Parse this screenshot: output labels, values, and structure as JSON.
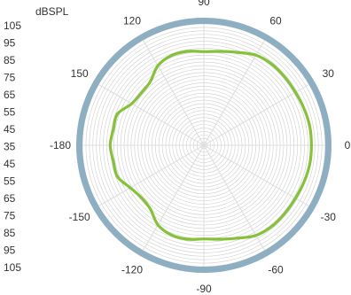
{
  "chart_data": {
    "type": "polar",
    "unit_label": "dBSPL",
    "radial_scale_labels": [
      "105",
      "95",
      "85",
      "75",
      "65",
      "55",
      "45",
      "35",
      "45",
      "55",
      "65",
      "75",
      "85",
      "95",
      "105"
    ],
    "angle_labels": [
      {
        "deg": 0,
        "text": "0"
      },
      {
        "deg": 30,
        "text": "30"
      },
      {
        "deg": 60,
        "text": "60"
      },
      {
        "deg": 90,
        "text": "90"
      },
      {
        "deg": 120,
        "text": "120"
      },
      {
        "deg": 150,
        "text": "150"
      },
      {
        "deg": 180,
        "text": "-180"
      },
      {
        "deg": -150,
        "text": "-150"
      },
      {
        "deg": -120,
        "text": "-120"
      },
      {
        "deg": -90,
        "text": "-90"
      },
      {
        "deg": -60,
        "text": "-60"
      },
      {
        "deg": -30,
        "text": "-30"
      }
    ],
    "r_range": [
      35,
      105
    ],
    "grid": true,
    "series": [
      {
        "color": "#86c13a",
        "points": [
          {
            "angle": 0,
            "value": 97
          },
          {
            "angle": 10,
            "value": 97
          },
          {
            "angle": 20,
            "value": 96.5
          },
          {
            "angle": 30,
            "value": 96
          },
          {
            "angle": 40,
            "value": 96
          },
          {
            "angle": 50,
            "value": 96
          },
          {
            "angle": 60,
            "value": 95
          },
          {
            "angle": 70,
            "value": 92
          },
          {
            "angle": 80,
            "value": 90
          },
          {
            "angle": 90,
            "value": 89
          },
          {
            "angle": 100,
            "value": 90
          },
          {
            "angle": 110,
            "value": 90
          },
          {
            "angle": 120,
            "value": 88
          },
          {
            "angle": 130,
            "value": 83
          },
          {
            "angle": 140,
            "value": 82
          },
          {
            "angle": 150,
            "value": 83
          },
          {
            "angle": 160,
            "value": 88
          },
          {
            "angle": 170,
            "value": 88
          },
          {
            "angle": 180,
            "value": 89
          },
          {
            "angle": -170,
            "value": 88
          },
          {
            "angle": -160,
            "value": 88
          },
          {
            "angle": -150,
            "value": 84
          },
          {
            "angle": -140,
            "value": 82
          },
          {
            "angle": -130,
            "value": 83
          },
          {
            "angle": -120,
            "value": 88
          },
          {
            "angle": -110,
            "value": 90
          },
          {
            "angle": -100,
            "value": 90
          },
          {
            "angle": -90,
            "value": 89
          },
          {
            "angle": -80,
            "value": 90
          },
          {
            "angle": -70,
            "value": 92
          },
          {
            "angle": -60,
            "value": 95
          },
          {
            "angle": -50,
            "value": 96
          },
          {
            "angle": -40,
            "value": 96
          },
          {
            "angle": -30,
            "value": 96
          },
          {
            "angle": -20,
            "value": 96.5
          },
          {
            "angle": -10,
            "value": 97
          }
        ]
      }
    ],
    "colors": {
      "ring": "#8eafc2",
      "grid": "#cfcfcf",
      "spoke": "#dddddd",
      "series": "#86c13a",
      "text": "#333333"
    }
  }
}
